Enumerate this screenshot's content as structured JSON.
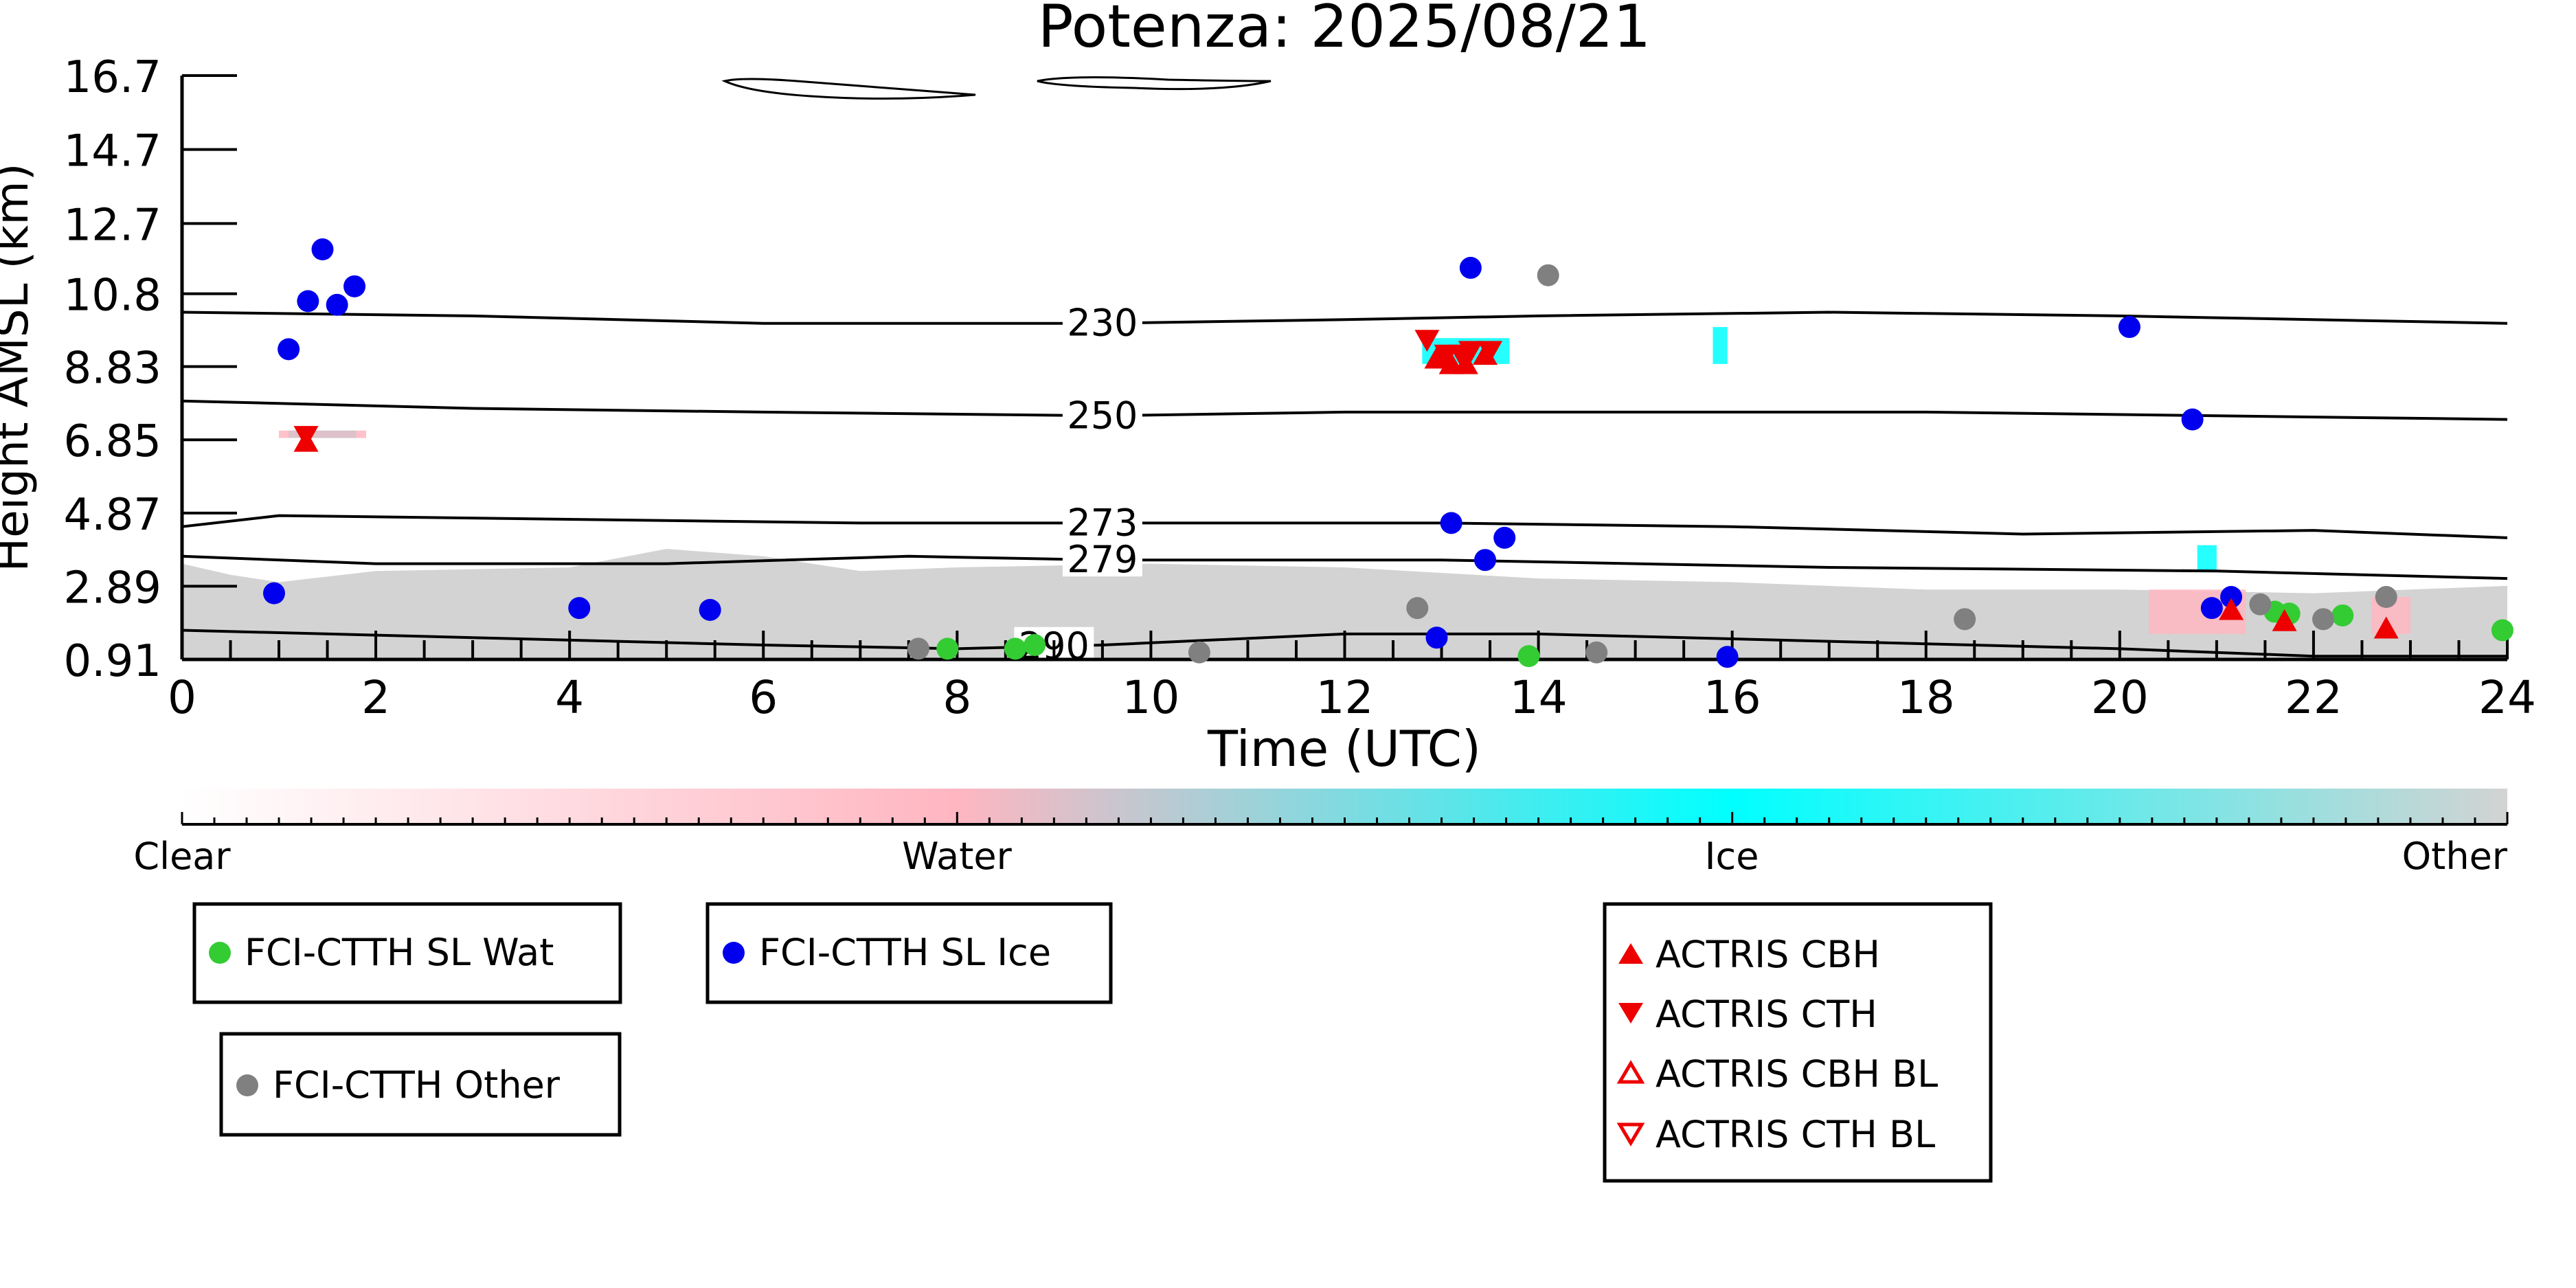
{
  "chart_data": {
    "type": "scatter",
    "title": "Potenza: 2025/08/21",
    "xlabel": "Time (UTC)",
    "ylabel": "Height AMSL (km)",
    "xlim": [
      0,
      24
    ],
    "ylim": [
      0.91,
      16.7
    ],
    "x_ticks": [
      "0",
      "2",
      "4",
      "6",
      "8",
      "10",
      "12",
      "14",
      "16",
      "18",
      "20",
      "22",
      "24"
    ],
    "y_ticks": [
      "0.91",
      "2.89",
      "4.87",
      "6.85",
      "8.83",
      "10.8",
      "12.7",
      "14.7",
      "16.7"
    ],
    "y_tick_values": [
      0.91,
      2.89,
      4.87,
      6.85,
      8.83,
      10.8,
      12.7,
      14.7,
      16.7
    ],
    "colorbar": {
      "labels": [
        "Clear",
        "Water",
        "Ice",
        "Other"
      ],
      "colors": [
        "#ffffff",
        "#ffb6c1",
        "#00ffff",
        "#d3d3d3"
      ]
    },
    "isotherms": [
      {
        "label": "230",
        "label_x": 9.5,
        "points": [
          [
            0,
            10.3
          ],
          [
            3,
            10.2
          ],
          [
            6,
            10.0
          ],
          [
            9.5,
            10.0
          ],
          [
            12,
            10.1
          ],
          [
            14,
            10.2
          ],
          [
            17,
            10.3
          ],
          [
            20,
            10.2
          ],
          [
            24,
            10.0
          ]
        ]
      },
      {
        "label": "250",
        "label_x": 9.5,
        "points": [
          [
            0,
            7.9
          ],
          [
            3,
            7.7
          ],
          [
            6,
            7.6
          ],
          [
            9.5,
            7.5
          ],
          [
            12,
            7.6
          ],
          [
            15,
            7.6
          ],
          [
            18,
            7.6
          ],
          [
            21,
            7.5
          ],
          [
            24,
            7.4
          ]
        ]
      },
      {
        "label": "273",
        "label_x": 9.5,
        "points": [
          [
            0,
            4.5
          ],
          [
            1,
            4.8
          ],
          [
            4,
            4.7
          ],
          [
            7,
            4.6
          ],
          [
            9.5,
            4.6
          ],
          [
            13,
            4.6
          ],
          [
            16,
            4.5
          ],
          [
            19,
            4.3
          ],
          [
            22,
            4.4
          ],
          [
            24,
            4.2
          ]
        ]
      },
      {
        "label": "279",
        "label_x": 9.5,
        "points": [
          [
            0,
            3.7
          ],
          [
            2,
            3.5
          ],
          [
            5,
            3.5
          ],
          [
            7.5,
            3.7
          ],
          [
            9.5,
            3.6
          ],
          [
            13,
            3.6
          ],
          [
            17,
            3.4
          ],
          [
            21,
            3.3
          ],
          [
            24,
            3.1
          ]
        ]
      },
      {
        "label": "290",
        "label_x": 9.0,
        "points": [
          [
            0,
            1.7
          ],
          [
            3,
            1.5
          ],
          [
            6,
            1.3
          ],
          [
            8,
            1.2
          ],
          [
            9.5,
            1.3
          ],
          [
            12,
            1.6
          ],
          [
            14,
            1.6
          ],
          [
            17,
            1.4
          ],
          [
            20,
            1.2
          ],
          [
            22,
            1.0
          ],
          [
            24,
            1.0
          ]
        ]
      }
    ],
    "series": [
      {
        "name": "FCI-CTTH SL Wat",
        "color": "#33cc33",
        "marker": "circle",
        "points": [
          [
            7.9,
            1.2
          ],
          [
            8.6,
            1.2
          ],
          [
            8.8,
            1.3
          ],
          [
            13.9,
            1.0
          ],
          [
            21.6,
            2.2
          ],
          [
            21.75,
            2.15
          ],
          [
            22.3,
            2.1
          ],
          [
            23.95,
            1.7
          ]
        ]
      },
      {
        "name": "FCI-CTTH SL Ice",
        "color": "#0000ee",
        "marker": "circle",
        "points": [
          [
            0.95,
            2.7
          ],
          [
            1.1,
            9.3
          ],
          [
            1.3,
            10.6
          ],
          [
            1.45,
            12.0
          ],
          [
            1.6,
            10.5
          ],
          [
            1.78,
            11.0
          ],
          [
            4.1,
            2.3
          ],
          [
            5.45,
            2.25
          ],
          [
            12.95,
            1.5
          ],
          [
            13.1,
            4.6
          ],
          [
            13.3,
            11.5
          ],
          [
            13.45,
            3.6
          ],
          [
            13.65,
            4.2
          ],
          [
            15.95,
            0.98
          ],
          [
            20.1,
            9.9
          ],
          [
            20.75,
            7.4
          ],
          [
            20.95,
            2.3
          ],
          [
            21.15,
            2.6
          ]
        ]
      },
      {
        "name": "FCI-CTTH Other",
        "color": "#808080",
        "marker": "circle",
        "points": [
          [
            7.6,
            1.2
          ],
          [
            10.5,
            1.1
          ],
          [
            12.75,
            2.3
          ],
          [
            14.1,
            11.3
          ],
          [
            14.6,
            1.1
          ],
          [
            18.4,
            2.0
          ],
          [
            21.45,
            2.4
          ],
          [
            22.1,
            2.0
          ],
          [
            22.75,
            2.6
          ]
        ]
      },
      {
        "name": "ACTRIS CBH",
        "color": "#ee0000",
        "marker": "triangle-up",
        "points": [
          [
            1.28,
            6.75
          ],
          [
            12.95,
            9.0
          ],
          [
            13.1,
            8.85
          ],
          [
            13.25,
            8.85
          ],
          [
            13.45,
            9.1
          ],
          [
            21.15,
            2.2
          ],
          [
            21.7,
            1.9
          ],
          [
            22.75,
            1.7
          ]
        ]
      },
      {
        "name": "ACTRIS CTH",
        "color": "#ee0000",
        "marker": "triangle-down",
        "points": [
          [
            1.28,
            7.0
          ],
          [
            12.85,
            9.6
          ],
          [
            13.05,
            9.2
          ],
          [
            13.2,
            9.2
          ],
          [
            13.3,
            9.3
          ],
          [
            13.5,
            9.3
          ]
        ]
      },
      {
        "name": "ACTRIS CBH BL",
        "color": "#ee0000",
        "marker": "triangle-up-open",
        "points": []
      },
      {
        "name": "ACTRIS CTH BL",
        "color": "#ee0000",
        "marker": "triangle-down-open",
        "points": []
      }
    ],
    "regions": [
      {
        "phase": "Other",
        "color": "#d3d3d3",
        "from_x": 0,
        "to_x": 24,
        "top_points": [
          [
            0,
            3.5
          ],
          [
            0.5,
            3.2
          ],
          [
            1,
            3.0
          ],
          [
            2,
            3.3
          ],
          [
            4,
            3.4
          ],
          [
            5,
            3.9
          ],
          [
            6,
            3.7
          ],
          [
            7,
            3.3
          ],
          [
            8,
            3.4
          ],
          [
            10,
            3.5
          ],
          [
            12,
            3.4
          ],
          [
            14,
            3.1
          ],
          [
            16,
            3.0
          ],
          [
            18,
            2.8
          ],
          [
            20,
            2.8
          ],
          [
            22,
            2.7
          ],
          [
            24,
            2.9
          ]
        ]
      },
      {
        "phase": "Ice",
        "color": "#00ffff",
        "patches": [
          [
            1.1,
            6.9,
            1.8,
            7.1
          ],
          [
            12.8,
            8.9,
            13.7,
            9.6
          ],
          [
            15.8,
            8.9,
            15.95,
            9.9
          ],
          [
            20.8,
            3.3,
            21.0,
            4.0
          ]
        ]
      },
      {
        "phase": "Water",
        "color": "#ffb6c1",
        "patches": [
          [
            1.0,
            6.9,
            1.9,
            7.1
          ],
          [
            20.3,
            1.6,
            21.3,
            2.8
          ],
          [
            22.6,
            1.6,
            23.0,
            2.6
          ]
        ]
      }
    ],
    "legend": [
      {
        "placement": "bottom-left",
        "entries": [
          "FCI-CTTH SL Wat"
        ]
      },
      {
        "placement": "bottom-center-left",
        "entries": [
          "FCI-CTTH SL Ice"
        ]
      },
      {
        "placement": "bottom-left-lower",
        "entries": [
          "FCI-CTTH Other"
        ]
      },
      {
        "placement": "bottom-center",
        "entries": [
          "ACTRIS CBH",
          "ACTRIS CTH",
          "ACTRIS CBH BL",
          "ACTRIS CTH BL"
        ]
      }
    ],
    "grid": false
  }
}
